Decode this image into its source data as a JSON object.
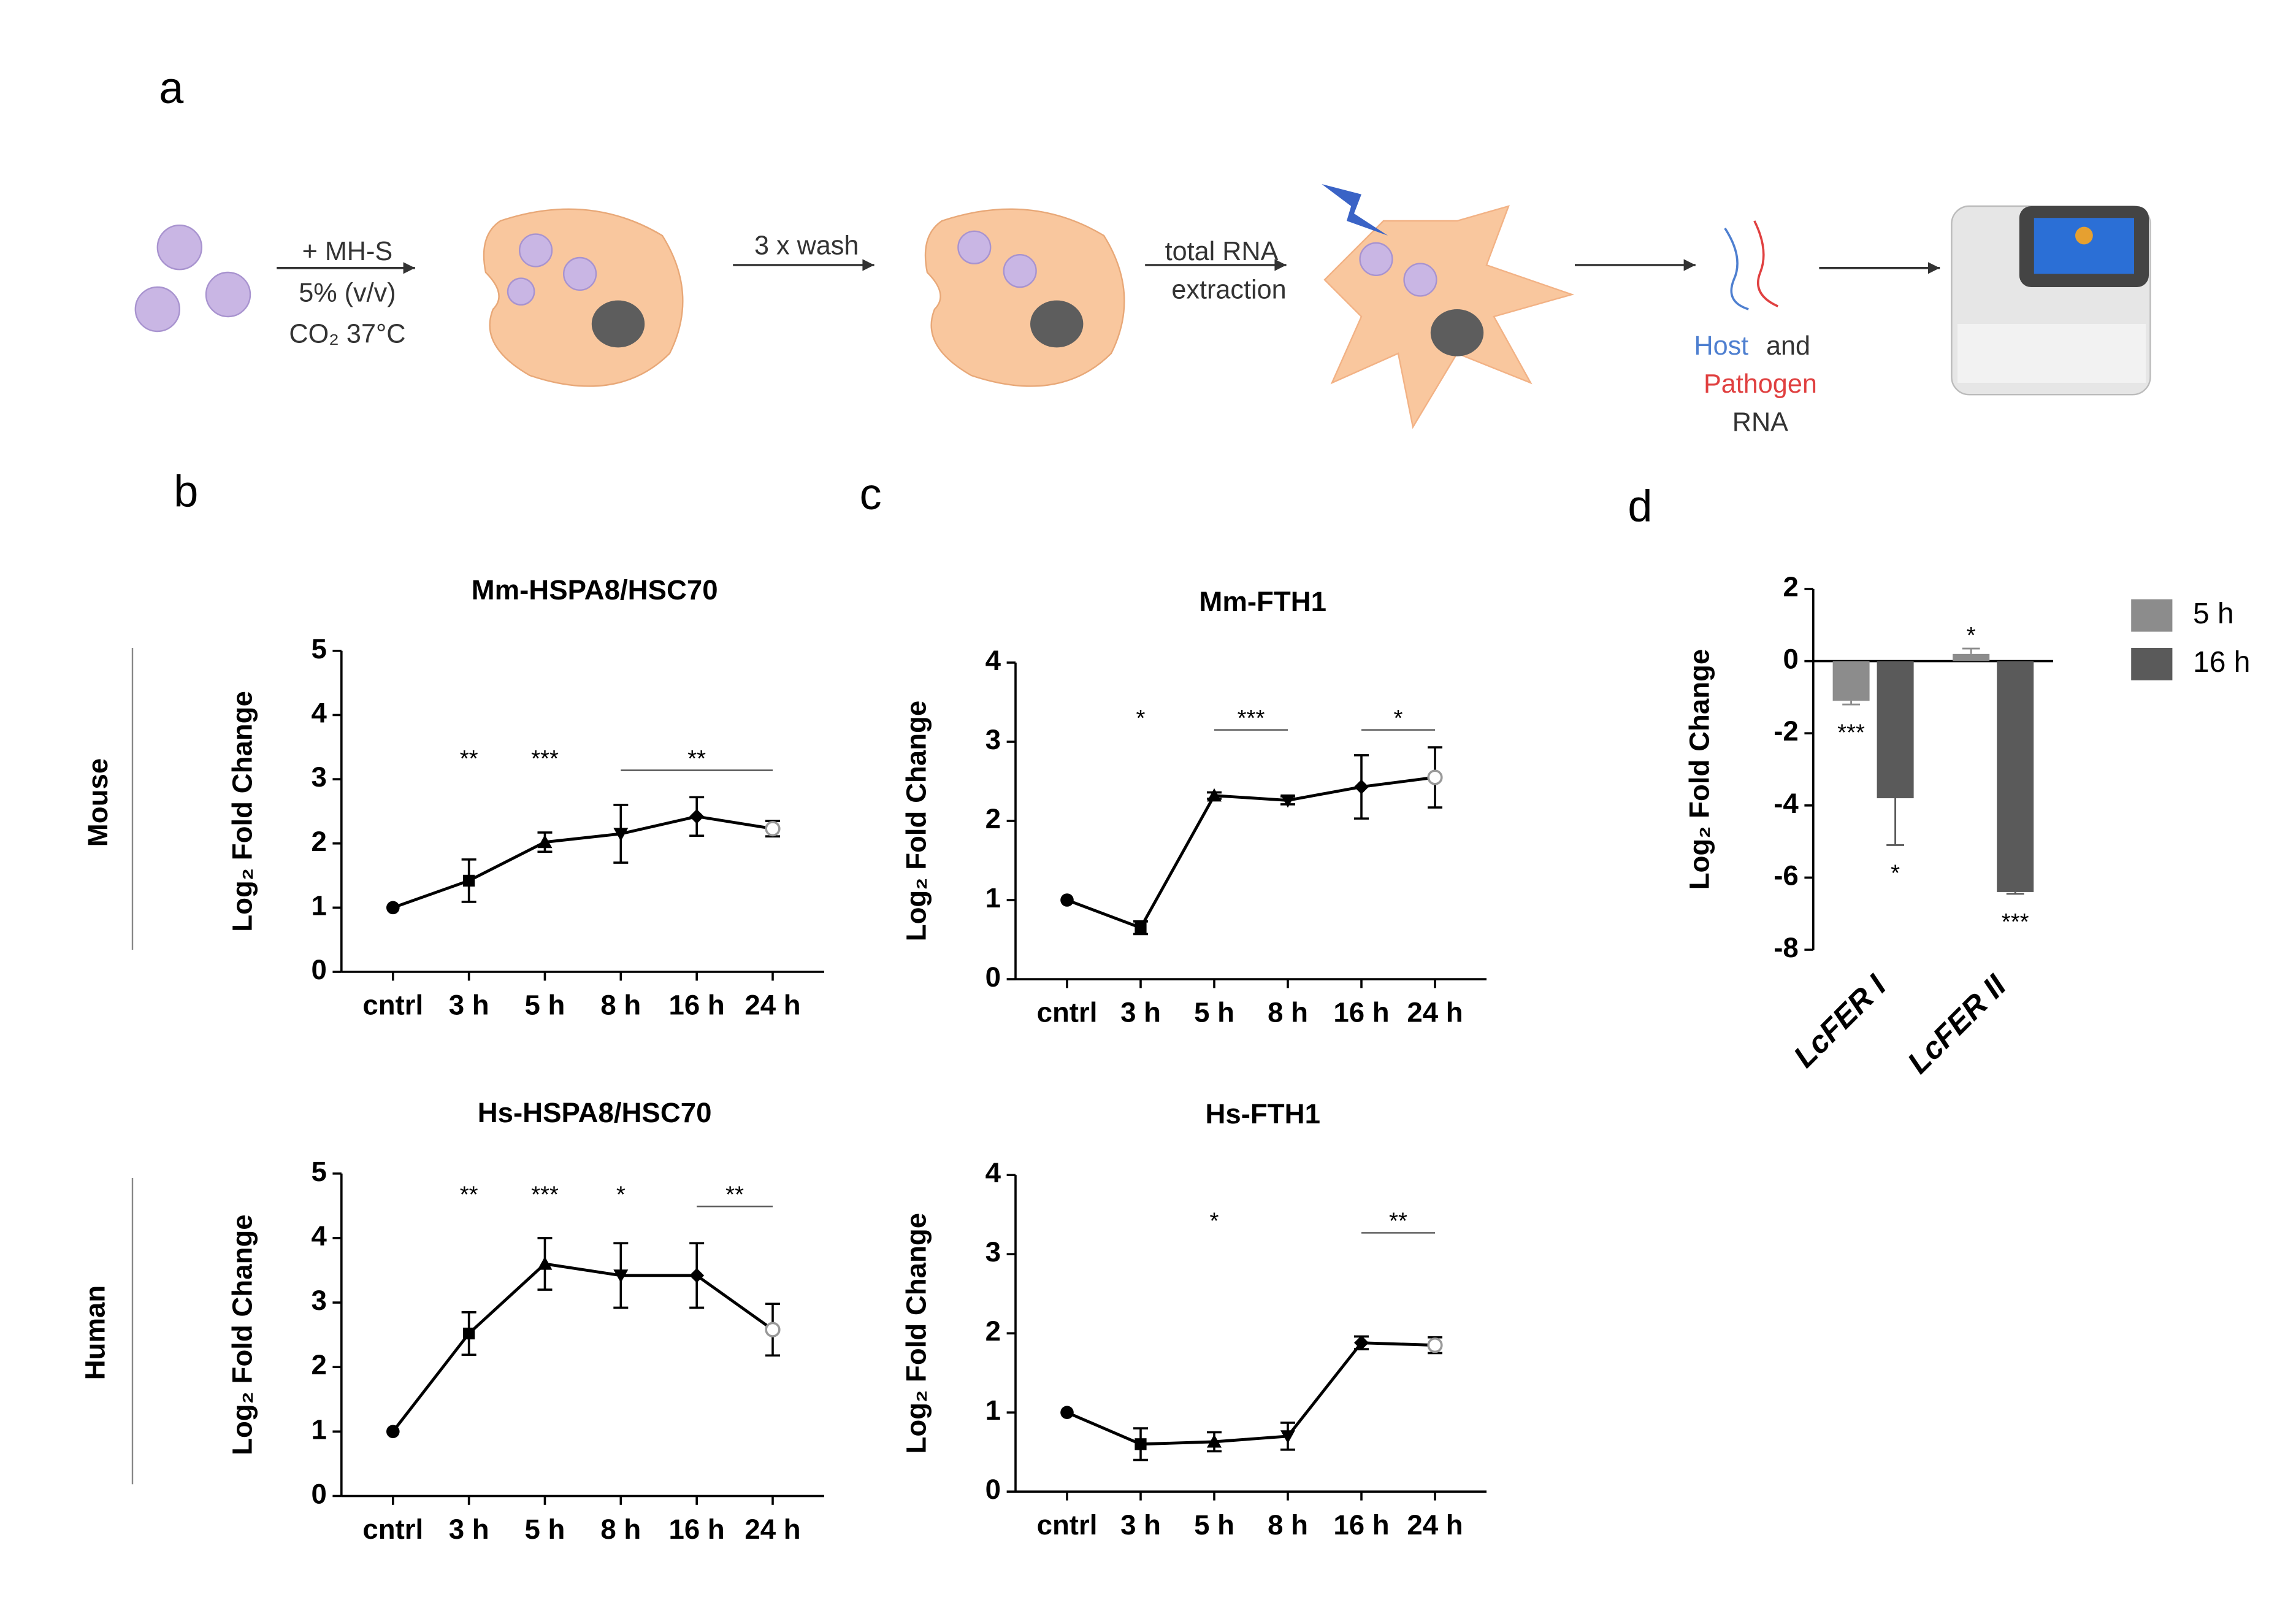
{
  "panels": {
    "a": "a",
    "b": "b",
    "c": "c",
    "d": "d"
  },
  "side_labels": {
    "mouse": "Mouse",
    "human": "Human"
  },
  "schematic": {
    "step1": [
      "+ MH-S",
      "5% (v/v)",
      "CO₂  37°C"
    ],
    "step2": "3 x wash",
    "step3": [
      "total RNA",
      "extraction"
    ],
    "rna": {
      "host": "Host",
      "and": "and",
      "pathogen": "Pathogen",
      "rna": "RNA"
    }
  },
  "chart_data": [
    {
      "type": "line",
      "title": "Mm-HSPA8/HSC70",
      "y_label": "Log₂ Fold Change",
      "categories": [
        "cntrl",
        "3 h",
        "5 h",
        "8 h",
        "16 h",
        "24 h"
      ],
      "values": [
        1,
        1.42,
        2.02,
        2.15,
        2.42,
        2.23
      ],
      "errors": [
        0,
        0.33,
        0.15,
        0.45,
        0.3,
        0.12
      ],
      "ylim": [
        0,
        5
      ],
      "yticks": [
        0,
        1,
        2,
        3,
        4,
        5
      ],
      "color": "#000000",
      "annotations": [
        {
          "text": "**",
          "at": "3 h"
        },
        {
          "text": "***",
          "at": "5 h"
        },
        {
          "text": "**",
          "span": [
            "8 h",
            "24 h"
          ]
        }
      ]
    },
    {
      "type": "line",
      "title": "Hs-HSPA8/HSC70",
      "y_label": "Log₂ Fold Change",
      "categories": [
        "cntrl",
        "3 h",
        "5 h",
        "8 h",
        "16 h",
        "24 h"
      ],
      "values": [
        1,
        2.52,
        3.6,
        3.42,
        3.42,
        2.58
      ],
      "errors": [
        0,
        0.33,
        0.4,
        0.5,
        0.5,
        0.4
      ],
      "ylim": [
        0,
        5
      ],
      "yticks": [
        0,
        1,
        2,
        3,
        4,
        5
      ],
      "color": "#000000",
      "annotations": [
        {
          "text": "**",
          "at": "3 h"
        },
        {
          "text": "***",
          "at": "5 h"
        },
        {
          "text": "*",
          "at": "8 h"
        },
        {
          "text": "**",
          "span": [
            "16 h",
            "24 h"
          ]
        }
      ]
    },
    {
      "type": "line",
      "title": "Mm-FTH1",
      "y_label": "Log₂ Fold Change",
      "categories": [
        "cntrl",
        "3 h",
        "5 h",
        "8 h",
        "16 h",
        "24 h"
      ],
      "values": [
        1,
        0.65,
        2.32,
        2.26,
        2.43,
        2.55
      ],
      "errors": [
        0,
        0.08,
        0.04,
        0.05,
        0.4,
        0.38
      ],
      "ylim": [
        0,
        4
      ],
      "yticks": [
        0,
        1,
        2,
        3,
        4
      ],
      "color": "#000000",
      "annotations": [
        {
          "text": "*",
          "at": "3 h"
        },
        {
          "text": "***",
          "span": [
            "5 h",
            "8 h"
          ]
        },
        {
          "text": "*",
          "span": [
            "16 h",
            "24 h"
          ]
        }
      ]
    },
    {
      "type": "line",
      "title": "Hs-FTH1",
      "y_label": "Log₂ Fold Change",
      "categories": [
        "cntrl",
        "3 h",
        "5 h",
        "8 h",
        "16 h",
        "24 h"
      ],
      "values": [
        1,
        0.6,
        0.63,
        0.7,
        1.88,
        1.85
      ],
      "errors": [
        0,
        0.2,
        0.12,
        0.17,
        0.08,
        0.1
      ],
      "ylim": [
        0,
        4
      ],
      "yticks": [
        0,
        1,
        2,
        3,
        4
      ],
      "color": "#000000",
      "annotations": [
        {
          "text": "*",
          "at": "5 h"
        },
        {
          "text": "**",
          "span": [
            "16 h",
            "24 h"
          ]
        }
      ]
    },
    {
      "type": "bar",
      "y_label": "Log₂ Fold Change",
      "categories": [
        "LcFER I",
        "LcFER II"
      ],
      "series": [
        {
          "name": "5 h",
          "color": "#8c8c8c",
          "values": [
            -1.1,
            0.2
          ],
          "errors": [
            0.1,
            0.15
          ]
        },
        {
          "name": "16 h",
          "color": "#5a5a5a",
          "values": [
            -3.8,
            -6.4
          ],
          "errors": [
            1.3,
            0.05
          ]
        }
      ],
      "ylim": [
        -8,
        2
      ],
      "yticks": [
        -8,
        -6,
        -4,
        -2,
        0,
        2
      ],
      "legend": "right",
      "annotations": [
        {
          "text": "***",
          "series": "5 h",
          "category": "LcFER I"
        },
        {
          "text": "*",
          "series": "16 h",
          "category": "LcFER I"
        },
        {
          "text": "*",
          "series": "5 h",
          "category": "LcFER II"
        },
        {
          "text": "***",
          "series": "16 h",
          "category": "LcFER II"
        }
      ]
    }
  ]
}
